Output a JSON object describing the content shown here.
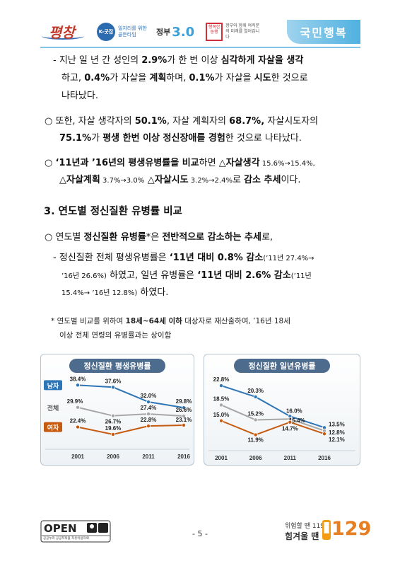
{
  "header": {
    "pyeongchang_logo": "평창",
    "kgood_circle": "K-굿잡",
    "kgood_text": "일자리를 위한 골든타임",
    "gov_text": "정부",
    "gov_num": "3.0",
    "happy_box": "행복한 동행",
    "happy_text": "정부와 함께 여러분의 미래를 열어갑니다",
    "banner": "국민행복"
  },
  "body": {
    "l1": {
      "dash": "-",
      "a": "지난 일 년 간 성인의 ",
      "b": "2.9%",
      "c": "가 한 번 이상 ",
      "d": "심각하게 자살을 생각"
    },
    "l2": {
      "a": "하고, ",
      "b": "0.4%",
      "c": "가 자살을 ",
      "d": "계획",
      "e": "하며, ",
      "f": "0.1%",
      "g": "가 자살을 ",
      "h": "시도",
      "i": "한 것으로"
    },
    "l3": "나타났다.",
    "l4": {
      "bullet": "○",
      "a": "또한, 자살 생각자의 ",
      "b": "50.1%",
      "c": ", 자살 계획자의 ",
      "d": "68.7%,",
      "e": " 자살시도자의"
    },
    "l5": {
      "a": "75.1%",
      "b": "가 ",
      "c": "평생 한번 이상 정신장애를 경험",
      "d": "한 것으로 나타났다."
    },
    "l6": {
      "bullet": "○",
      "a": "‘11년과 ’16년의 평생유병률을 비교",
      "b": "하면 ",
      "c": "△자살생각",
      "d": " 15.6%→15.4%,"
    },
    "l7": {
      "a": "△자살계획",
      "b": " 3.7%→3.0%",
      "c": "  △자살시도",
      "d": " 3.2%→2.4%",
      "e": "로 ",
      "f": "감소 추세",
      "g": "이다."
    },
    "section": "3. 연도별 정신질환 유병률 비교",
    "l8": {
      "bullet": "○",
      "a": "연도별 ",
      "b": "정신질환 유병률",
      "c": "*은 ",
      "d": "전반적으로 감소하는 추세",
      "e": "로,"
    },
    "l9": {
      "dash": "-",
      "a": "정신질환 전체 평생유병률은 ",
      "b": "‘11년 대비 0.8% 감소",
      "c": "(’11년 27.4%→"
    },
    "l10": {
      "a": "’16년 26.6%)",
      "b": " 하였고, 일년 유병률은 ",
      "c": "‘11년 대비 2.6% 감소",
      "d": "(’11년"
    },
    "l11": {
      "a": "15.4%→ ’16년 12.8%)",
      "b": " 하였다."
    },
    "n1": {
      "star": "*",
      "a": "연도별 비교를 위하여 ",
      "b": "18세~64세 이하",
      "c": " 대상자로 재산출하여, ’16년 18세"
    },
    "n2": "이상 전체 연령의 유병률과는 상이함"
  },
  "chart_data": [
    {
      "type": "line",
      "title": "정신질환 평생유병률",
      "categories": [
        "2001",
        "2006",
        "2011",
        "2016"
      ],
      "series": [
        {
          "name": "남자",
          "values": [
            38.4,
            37.6,
            32.0,
            29.8
          ],
          "labels": [
            "38.4%",
            "37.6%",
            "32.0%",
            "29.8%"
          ],
          "color": "#2e75b6"
        },
        {
          "name": "전체",
          "values": [
            29.9,
            26.7,
            27.4,
            26.6
          ],
          "labels": [
            "29.9%",
            "26.7%",
            "27.4%",
            "26.6%"
          ],
          "color": "#a6a6a6"
        },
        {
          "name": "여자",
          "values": [
            22.4,
            19.6,
            22.8,
            23.1
          ],
          "labels": [
            "22.4%",
            "19.6%",
            "22.8%",
            "23.1%"
          ],
          "color": "#c55a11"
        }
      ],
      "ylim": [
        15,
        42
      ],
      "legend": "left"
    },
    {
      "type": "line",
      "title": "정신질환 일년유병률",
      "categories": [
        "2001",
        "2006",
        "2011",
        "2016"
      ],
      "series": [
        {
          "name": "",
          "values": [
            22.8,
            20.3,
            16.0,
            13.5
          ],
          "labels": [
            "22.8%",
            "20.3%",
            "16.0%",
            "13.5%"
          ],
          "color": "#2e75b6"
        },
        {
          "name": "",
          "values": [
            18.5,
            15.2,
            15.4,
            12.8
          ],
          "labels": [
            "18.5%",
            "15.2%",
            "15.4%",
            "12.8%"
          ],
          "color": "#a6a6a6"
        },
        {
          "name": "",
          "values": [
            15.0,
            11.9,
            14.7,
            12.1
          ],
          "labels": [
            "15.0%",
            "11.9%",
            "14.7%",
            "12.1%"
          ],
          "color": "#c55a11"
        }
      ],
      "ylim": [
        9,
        25
      ]
    }
  ],
  "footer": {
    "open": "OPEN",
    "open_sub": "공공누리  공공저작물 자유이용허락",
    "page": "- 5 -",
    "hotline_text1": "위험할 땐 119",
    "hotline_text2": "힘겨울 땐",
    "hotline_num": "129"
  }
}
